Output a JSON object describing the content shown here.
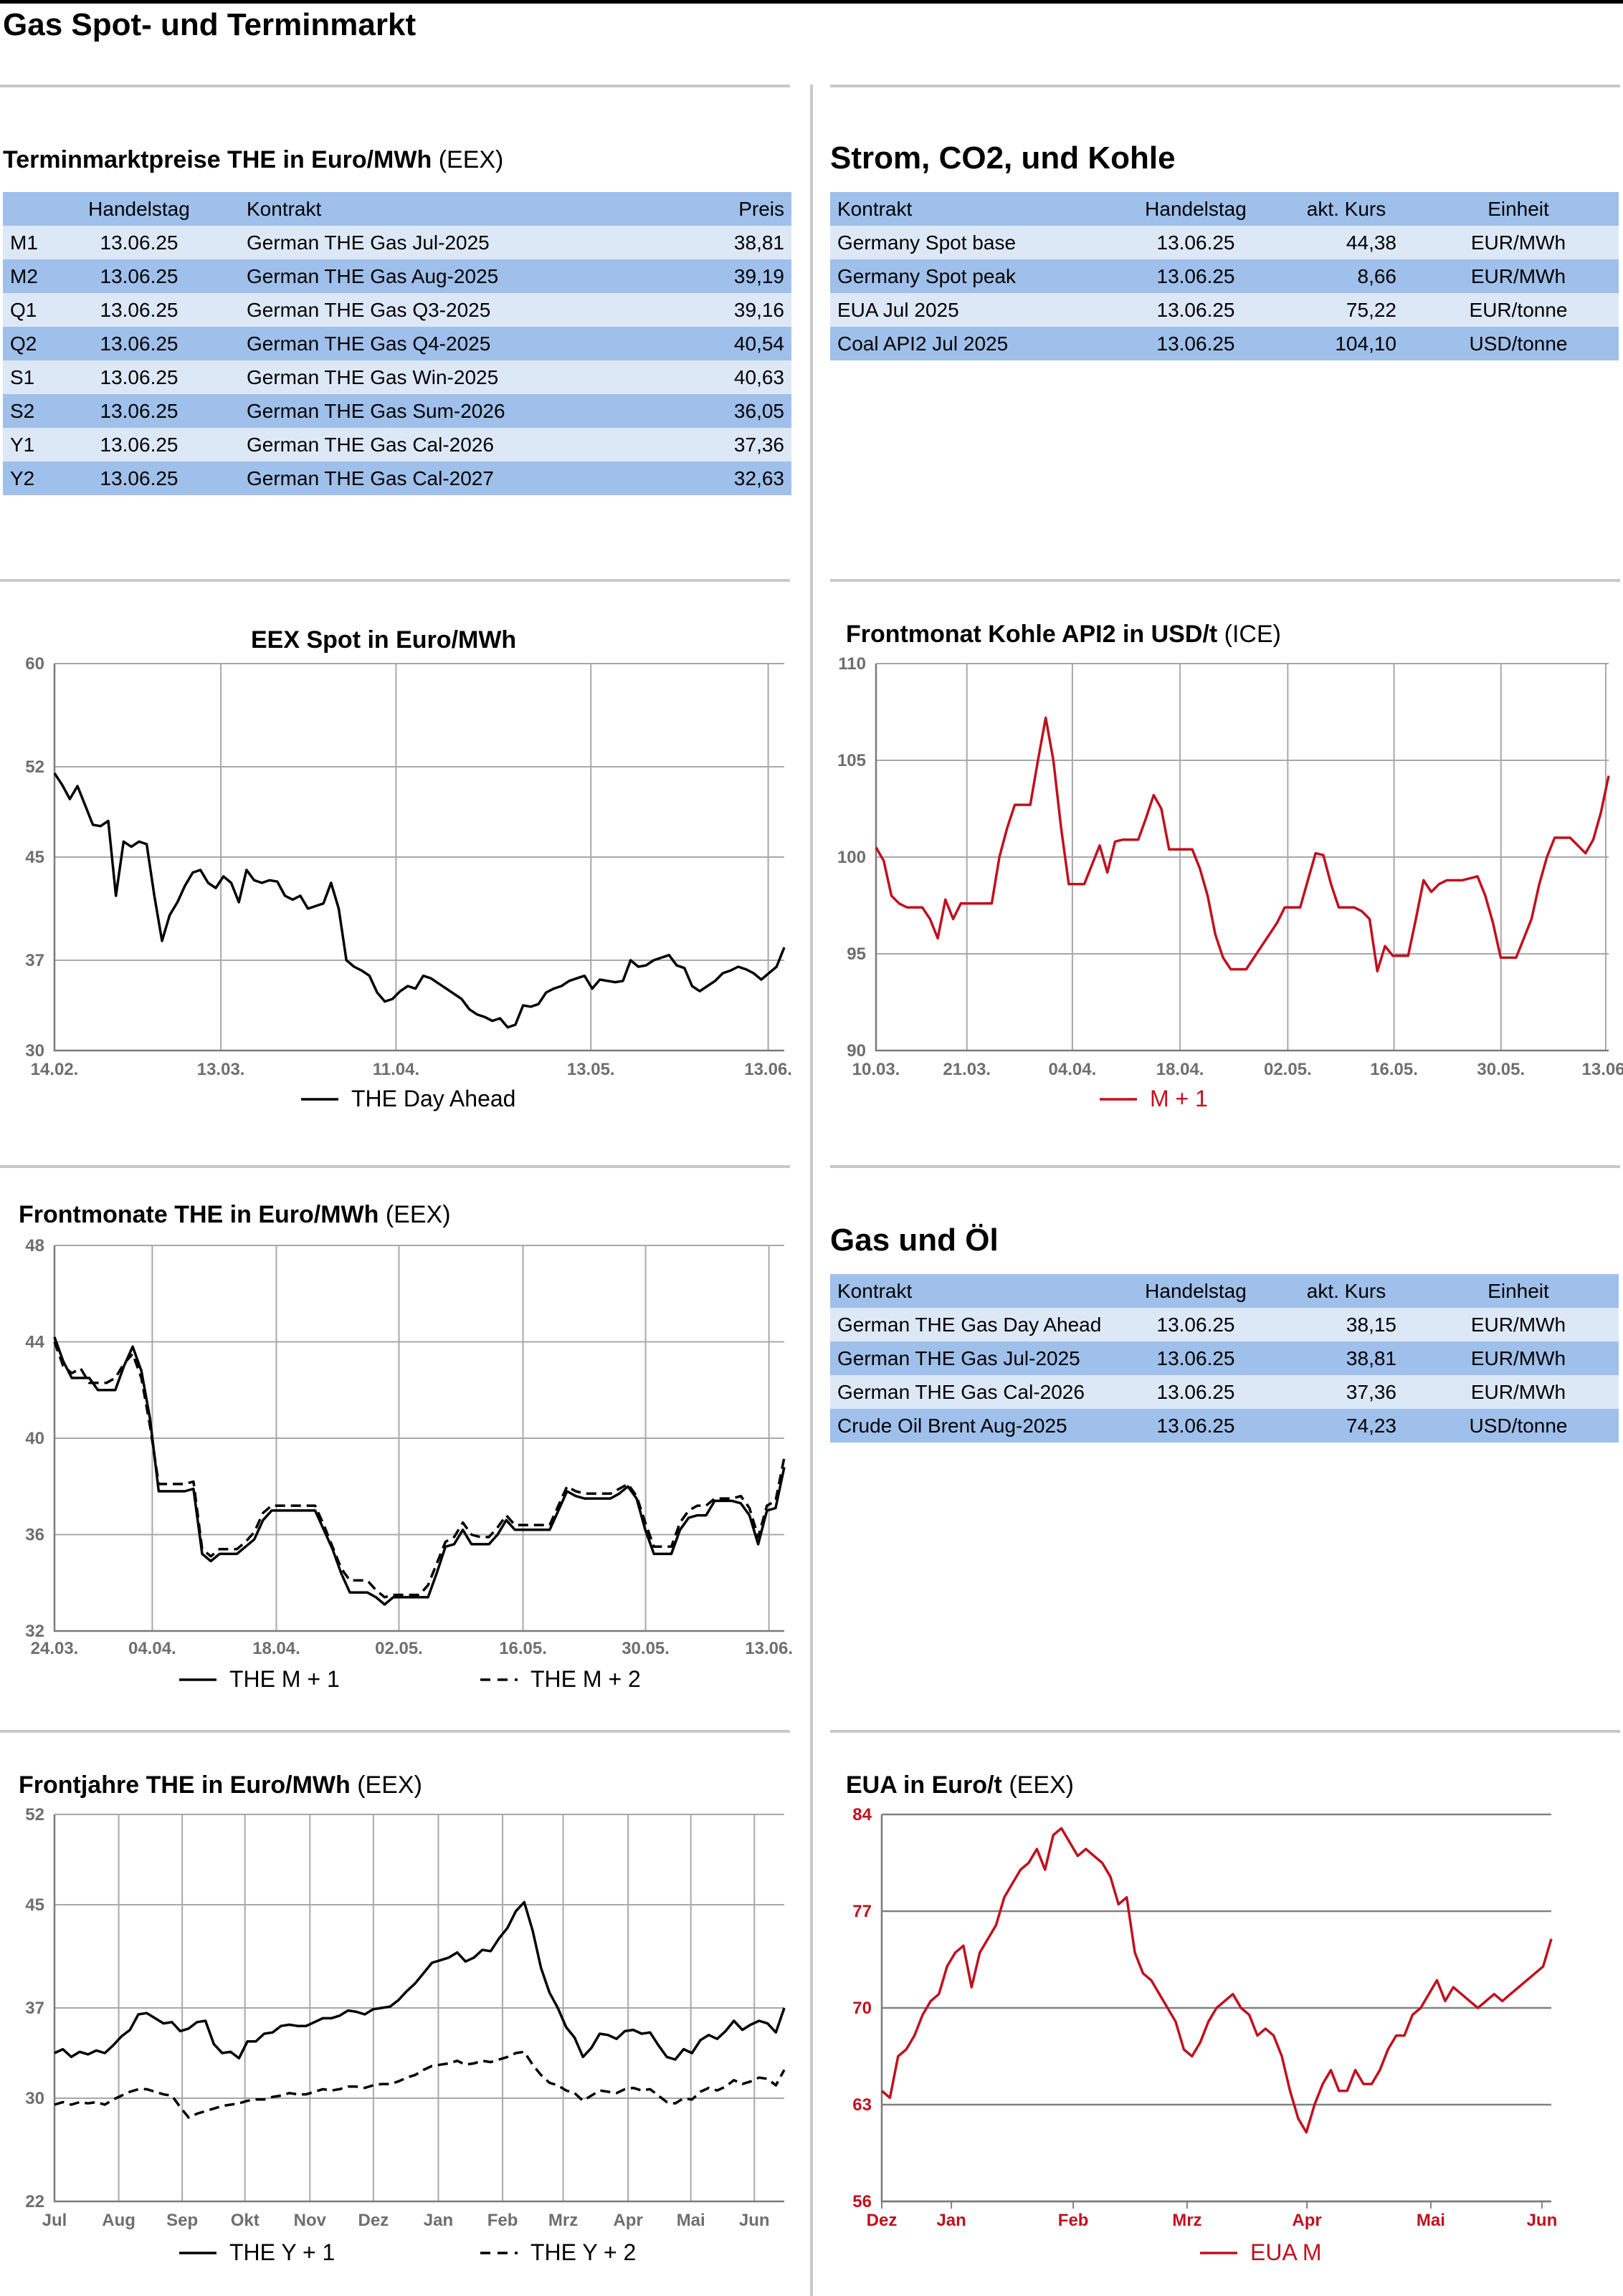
{
  "page_title": "Gas Spot- und Terminmarkt",
  "colors": {
    "black": "#000000",
    "red": "#c0101e",
    "grid": "#a8a8a8",
    "table_dark": "#9fc0ea",
    "table_light": "#dde8f7"
  },
  "termin": {
    "title": "Terminmarktpreise THE in Euro/MWh",
    "source": "(EEX)",
    "headers": [
      "",
      "Handelstag",
      "Kontrakt",
      "Preis"
    ],
    "rows": [
      [
        "M1",
        "13.06.25",
        "German THE Gas Jul-2025",
        "38,81"
      ],
      [
        "M2",
        "13.06.25",
        "German THE Gas Aug-2025",
        "39,19"
      ],
      [
        "Q1",
        "13.06.25",
        "German THE Gas Q3-2025",
        "39,16"
      ],
      [
        "Q2",
        "13.06.25",
        "German THE Gas Q4-2025",
        "40,54"
      ],
      [
        "S1",
        "13.06.25",
        "German THE Gas Win-2025",
        "40,63"
      ],
      [
        "S2",
        "13.06.25",
        "German THE Gas Sum-2026",
        "36,05"
      ],
      [
        "Y1",
        "13.06.25",
        "German THE Gas Cal-2026",
        "37,36"
      ],
      [
        "Y2",
        "13.06.25",
        "German THE Gas Cal-2027",
        "32,63"
      ]
    ]
  },
  "strom": {
    "title": "Strom, CO2, und Kohle",
    "headers": [
      "Kontrakt",
      "Handelstag",
      "akt. Kurs",
      "Einheit"
    ],
    "rows": [
      [
        "Germany Spot base",
        "13.06.25",
        "44,38",
        "EUR/MWh"
      ],
      [
        "Germany Spot peak",
        "13.06.25",
        "8,66",
        "EUR/MWh"
      ],
      [
        "EUA Jul 2025",
        "13.06.25",
        "75,22",
        "EUR/tonne"
      ],
      [
        "Coal API2 Jul 2025",
        "13.06.25",
        "104,10",
        "USD/tonne"
      ]
    ]
  },
  "gasoel": {
    "title": "Gas und Öl",
    "headers": [
      "Kontrakt",
      "Handelstag",
      "akt. Kurs",
      "Einheit"
    ],
    "rows": [
      [
        "German THE Gas Day Ahead",
        "13.06.25",
        "38,15",
        "EUR/MWh"
      ],
      [
        "German THE Gas Jul-2025",
        "13.06.25",
        "38,81",
        "EUR/MWh"
      ],
      [
        "German THE Gas Cal-2026",
        "13.06.25",
        "37,36",
        "EUR/MWh"
      ],
      [
        "Crude Oil Brent Aug-2025",
        "13.06.25",
        "74,23",
        "USD/tonne"
      ]
    ]
  },
  "chart_data": [
    {
      "id": "spot",
      "type": "line",
      "title": "EEX Spot in Euro/MWh",
      "source": "",
      "ylim": [
        30,
        60
      ],
      "yticks": [
        30,
        37,
        45,
        52,
        60
      ],
      "xticks": [
        "14.02.",
        "13.03.",
        "11.04.",
        "13.05.",
        "13.06."
      ],
      "grid": true,
      "series": [
        {
          "name": "THE Day Ahead",
          "style": "solid",
          "color": "#000000",
          "values": [
            51.5,
            50.6,
            49.5,
            50.5,
            49.0,
            47.5,
            47.4,
            47.8,
            42.0,
            46.2,
            45.8,
            46.2,
            46.0,
            42.0,
            38.5,
            40.5,
            41.5,
            42.8,
            43.8,
            44.0,
            43.0,
            42.6,
            43.5,
            43.0,
            41.5,
            44.0,
            43.2,
            43.0,
            43.2,
            43.1,
            42.0,
            41.7,
            42.0,
            41.0,
            41.2,
            41.4,
            43.0,
            41.0,
            37.0,
            36.5,
            36.2,
            35.8,
            34.5,
            33.8,
            34.0,
            34.6,
            35.0,
            34.8,
            35.8,
            35.6,
            35.2,
            34.8,
            34.4,
            34.0,
            33.2,
            32.8,
            32.6,
            32.3,
            32.5,
            31.8,
            32.0,
            33.5,
            33.4,
            33.6,
            34.5,
            34.8,
            35.0,
            35.4,
            35.6,
            35.8,
            34.8,
            35.5,
            35.4,
            35.3,
            35.4,
            37.0,
            36.5,
            36.6,
            37.0,
            37.2,
            37.4,
            36.6,
            36.4,
            35.0,
            34.6,
            35.0,
            35.4,
            36.0,
            36.2,
            36.5,
            36.3,
            36.0,
            35.5,
            36.0,
            36.5,
            38.0
          ]
        }
      ]
    },
    {
      "id": "kohle",
      "type": "line",
      "title": "Frontmonat Kohle API2 in USD/t",
      "source": "(ICE)",
      "ylim": [
        90,
        110
      ],
      "yticks": [
        90,
        95,
        100,
        105,
        110
      ],
      "xticks": [
        "10.03.",
        "21.03.",
        "04.04.",
        "18.04.",
        "02.05.",
        "16.05.",
        "30.05.",
        "13.06."
      ],
      "grid": true,
      "series": [
        {
          "name": "M + 1",
          "style": "solid",
          "color": "#c0101e",
          "values": [
            100.5,
            99.8,
            98.0,
            97.6,
            97.4,
            97.4,
            97.4,
            96.8,
            95.8,
            97.8,
            96.8,
            97.6,
            97.6,
            97.6,
            97.6,
            97.6,
            100.0,
            101.5,
            102.7,
            102.7,
            102.7,
            105.0,
            107.2,
            105.0,
            101.5,
            98.6,
            98.6,
            98.6,
            99.6,
            100.6,
            99.2,
            100.8,
            100.9,
            100.9,
            100.9,
            102.0,
            103.2,
            102.5,
            100.4,
            100.4,
            100.4,
            100.4,
            99.4,
            98.0,
            96.0,
            94.8,
            94.2,
            94.2,
            94.2,
            94.8,
            95.4,
            96.0,
            96.6,
            97.4,
            97.4,
            97.4,
            98.8,
            100.2,
            100.1,
            98.6,
            97.4,
            97.4,
            97.4,
            97.2,
            96.8,
            94.1,
            95.4,
            94.9,
            94.9,
            94.9,
            96.8,
            98.8,
            98.2,
            98.6,
            98.8,
            98.8,
            98.8,
            98.9,
            99.0,
            98.0,
            96.6,
            94.8,
            94.8,
            94.8,
            95.8,
            96.8,
            98.6,
            100.0,
            101.0,
            101.0,
            101.0,
            100.6,
            100.2,
            100.9,
            102.3,
            104.2
          ]
        }
      ]
    },
    {
      "id": "frontmonate",
      "type": "line",
      "title": "Frontmonate THE in Euro/MWh",
      "source": "(EEX)",
      "ylim": [
        32,
        48
      ],
      "yticks": [
        32,
        36,
        40,
        44,
        48
      ],
      "xticks": [
        "24.03.",
        "04.04.",
        "18.04.",
        "02.05.",
        "16.05.",
        "30.05.",
        "13.06."
      ],
      "grid": true,
      "series": [
        {
          "name": "THE M + 1",
          "style": "solid",
          "color": "#000000",
          "values": [
            44.2,
            43.2,
            42.5,
            42.5,
            42.5,
            42.0,
            42.0,
            42.0,
            43.0,
            43.8,
            42.8,
            40.8,
            37.8,
            37.8,
            37.8,
            37.8,
            37.9,
            35.2,
            34.9,
            35.2,
            35.2,
            35.2,
            35.5,
            35.8,
            36.6,
            37.0,
            37.0,
            37.0,
            37.0,
            37.0,
            37.0,
            36.2,
            35.4,
            34.4,
            33.6,
            33.6,
            33.6,
            33.4,
            33.1,
            33.4,
            33.4,
            33.4,
            33.4,
            33.4,
            34.4,
            35.5,
            35.6,
            36.2,
            35.6,
            35.6,
            35.6,
            36.0,
            36.6,
            36.2,
            36.2,
            36.2,
            36.2,
            36.2,
            37.0,
            37.8,
            37.6,
            37.5,
            37.5,
            37.5,
            37.5,
            37.7,
            38.0,
            37.5,
            36.2,
            35.2,
            35.2,
            35.2,
            36.2,
            36.7,
            36.8,
            36.8,
            37.4,
            37.4,
            37.4,
            37.3,
            36.8,
            35.6,
            37.0,
            37.1,
            38.8
          ]
        },
        {
          "name": "THE M + 2",
          "style": "dashed",
          "color": "#000000",
          "values": [
            44.0,
            43.0,
            42.7,
            42.9,
            42.3,
            42.3,
            42.3,
            42.5,
            43.1,
            43.5,
            42.5,
            40.5,
            38.1,
            38.1,
            38.1,
            38.1,
            38.2,
            35.4,
            35.1,
            35.4,
            35.4,
            35.4,
            35.7,
            36.1,
            36.9,
            37.2,
            37.2,
            37.2,
            37.2,
            37.2,
            37.2,
            36.4,
            35.5,
            34.6,
            34.1,
            34.1,
            34.1,
            33.7,
            33.4,
            33.5,
            33.5,
            33.5,
            33.5,
            33.9,
            34.8,
            35.7,
            35.9,
            36.5,
            36.0,
            35.9,
            35.9,
            36.3,
            36.8,
            36.4,
            36.4,
            36.4,
            36.4,
            36.4,
            37.2,
            38.0,
            37.8,
            37.7,
            37.7,
            37.7,
            37.7,
            37.9,
            38.1,
            37.6,
            36.5,
            35.5,
            35.5,
            35.5,
            36.5,
            37.0,
            37.2,
            37.2,
            37.5,
            37.5,
            37.5,
            37.6,
            37.1,
            35.9,
            37.2,
            37.4,
            39.2
          ]
        }
      ]
    },
    {
      "id": "frontjahre",
      "type": "line",
      "title": "Frontjahre THE in Euro/MWh",
      "source": "(EEX)",
      "ylim": [
        22,
        52
      ],
      "yticks": [
        22,
        30,
        37,
        45,
        52
      ],
      "xticks": [
        "Jul",
        "Aug",
        "Sep",
        "Okt",
        "Nov",
        "Dez",
        "Jan",
        "Feb",
        "Mrz",
        "Apr",
        "Mai",
        "Jun"
      ],
      "grid": true,
      "series": [
        {
          "name": "THE Y + 1",
          "style": "solid",
          "color": "#000000",
          "values": [
            33.5,
            33.8,
            33.2,
            33.6,
            33.4,
            33.7,
            33.5,
            34.1,
            34.8,
            35.3,
            36.5,
            36.6,
            36.2,
            35.8,
            35.9,
            35.2,
            35.4,
            35.9,
            36.0,
            34.2,
            33.5,
            33.6,
            33.1,
            34.4,
            34.4,
            35.0,
            35.1,
            35.6,
            35.7,
            35.6,
            35.6,
            35.9,
            36.2,
            36.2,
            36.4,
            36.8,
            36.7,
            36.5,
            36.9,
            37.0,
            37.1,
            37.6,
            38.3,
            38.9,
            39.7,
            40.5,
            40.7,
            40.9,
            41.3,
            40.6,
            40.9,
            41.5,
            41.4,
            42.4,
            43.2,
            44.5,
            45.2,
            43.0,
            40.1,
            38.2,
            37.0,
            35.5,
            34.7,
            33.2,
            33.9,
            35.0,
            34.9,
            34.6,
            35.2,
            35.3,
            35.0,
            35.1,
            34.1,
            33.2,
            33.0,
            33.8,
            33.5,
            34.5,
            34.9,
            34.6,
            35.2,
            36.0,
            35.3,
            35.7,
            36.0,
            35.8,
            35.1,
            37.0
          ]
        },
        {
          "name": "THE Y + 2",
          "style": "dashed",
          "color": "#000000",
          "values": [
            29.5,
            29.7,
            29.5,
            29.7,
            29.6,
            29.7,
            29.5,
            29.9,
            30.2,
            30.5,
            30.7,
            30.7,
            30.5,
            30.3,
            30.2,
            29.3,
            28.5,
            28.8,
            29.0,
            29.2,
            29.4,
            29.5,
            29.6,
            29.8,
            29.9,
            29.9,
            30.1,
            30.2,
            30.4,
            30.3,
            30.3,
            30.5,
            30.7,
            30.6,
            30.7,
            30.9,
            30.9,
            30.8,
            31.0,
            31.1,
            31.1,
            31.3,
            31.6,
            31.8,
            32.2,
            32.5,
            32.6,
            32.7,
            32.9,
            32.6,
            32.7,
            32.9,
            32.8,
            33.0,
            33.2,
            33.5,
            33.6,
            32.6,
            31.8,
            31.2,
            31.0,
            30.6,
            30.4,
            29.8,
            30.2,
            30.6,
            30.5,
            30.4,
            30.7,
            30.8,
            30.6,
            30.7,
            30.2,
            29.7,
            29.6,
            30.0,
            29.9,
            30.5,
            30.8,
            30.6,
            30.9,
            31.4,
            31.1,
            31.3,
            31.6,
            31.5,
            31.0,
            32.2
          ]
        }
      ]
    },
    {
      "id": "eua",
      "type": "line",
      "title": "EUA in Euro/t",
      "source": "(EEX)",
      "ylim": [
        56,
        84
      ],
      "yticks": [
        56,
        63,
        70,
        77,
        84
      ],
      "xticks": [
        "Dez",
        "Jan",
        "Feb",
        "Mrz",
        "Apr",
        "Mai",
        "Jun"
      ],
      "grid": true,
      "series": [
        {
          "name": "EUA M",
          "style": "solid",
          "color": "#c0101e",
          "values": [
            64.0,
            63.5,
            66.5,
            67.0,
            68.0,
            69.5,
            70.5,
            71.0,
            73.0,
            74.0,
            74.5,
            71.5,
            74.0,
            75.0,
            76.0,
            78.0,
            79.0,
            80.0,
            80.5,
            81.5,
            80.0,
            82.5,
            83.0,
            82.0,
            81.0,
            81.5,
            81.0,
            80.5,
            79.5,
            77.5,
            78.0,
            74.0,
            72.5,
            72.0,
            71.0,
            70.0,
            69.0,
            67.0,
            66.5,
            67.5,
            69.0,
            70.0,
            70.5,
            71.0,
            70.0,
            69.5,
            68.0,
            68.5,
            68.0,
            66.5,
            64.0,
            62.0,
            61.0,
            63.0,
            64.5,
            65.5,
            64.0,
            64.0,
            65.5,
            64.5,
            64.5,
            65.5,
            67.0,
            68.0,
            68.0,
            69.5,
            70.0,
            71.0,
            72.0,
            70.5,
            71.5,
            71.0,
            70.5,
            70.0,
            70.5,
            71.0,
            70.5,
            71.0,
            71.5,
            72.0,
            72.5,
            73.0,
            75.0
          ]
        }
      ]
    }
  ]
}
